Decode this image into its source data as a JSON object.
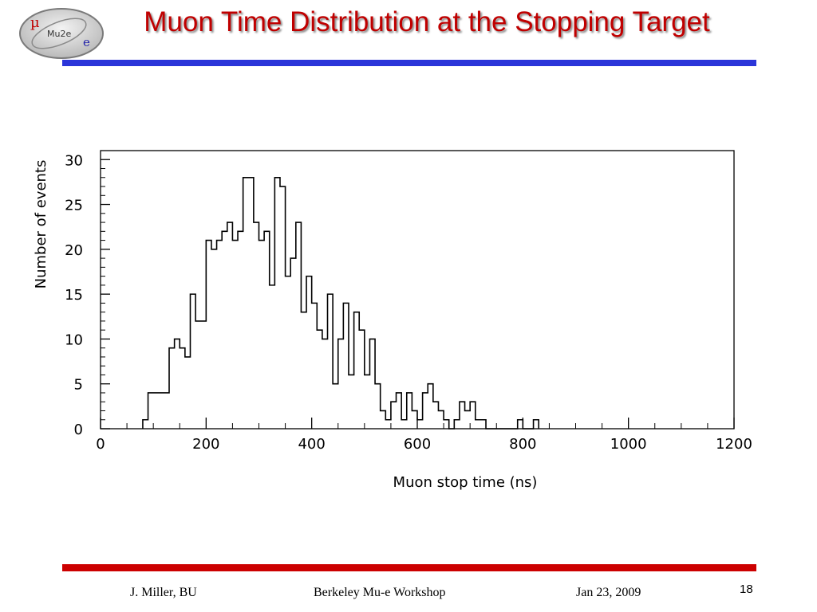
{
  "slide": {
    "title": "Muon Time Distribution at the Stopping Target",
    "logo_text": "Mu2e",
    "logo_mu": "µ",
    "logo_e": "e"
  },
  "colors": {
    "title": "#c00000",
    "top_bar": "#2b35d9",
    "bottom_bar": "#cc0000",
    "plot": "#000000"
  },
  "footer": {
    "author": "J. Miller, BU",
    "event": "Berkeley Mu-e Workshop",
    "date": "Jan 23, 2009",
    "page": "18"
  },
  "chart_data": {
    "type": "bar",
    "style": "step histogram",
    "title": "",
    "xlabel": "Muon stop time (ns)",
    "ylabel": "Number of events",
    "xlim": [
      0,
      1200
    ],
    "ylim": [
      0,
      31
    ],
    "xticks": [
      0,
      200,
      400,
      600,
      800,
      1000,
      1200
    ],
    "yticks": [
      0,
      5,
      10,
      15,
      20,
      25,
      30
    ],
    "bin_width": 10,
    "bin_start": 80,
    "counts": [
      1,
      4,
      4,
      4,
      4,
      9,
      10,
      9,
      8,
      15,
      12,
      12,
      21,
      20,
      21,
      22,
      23,
      21,
      22,
      28,
      28,
      23,
      21,
      22,
      16,
      28,
      27,
      17,
      19,
      23,
      13,
      17,
      14,
      11,
      10,
      15,
      5,
      10,
      14,
      6,
      13,
      11,
      6,
      10,
      5,
      2,
      1,
      3,
      4,
      1,
      4,
      2,
      1,
      4,
      5,
      3,
      2,
      1,
      0,
      1,
      3,
      2,
      3,
      1,
      1,
      0,
      0,
      0,
      0,
      0,
      0,
      1,
      0,
      0,
      1
    ],
    "grid": false
  }
}
